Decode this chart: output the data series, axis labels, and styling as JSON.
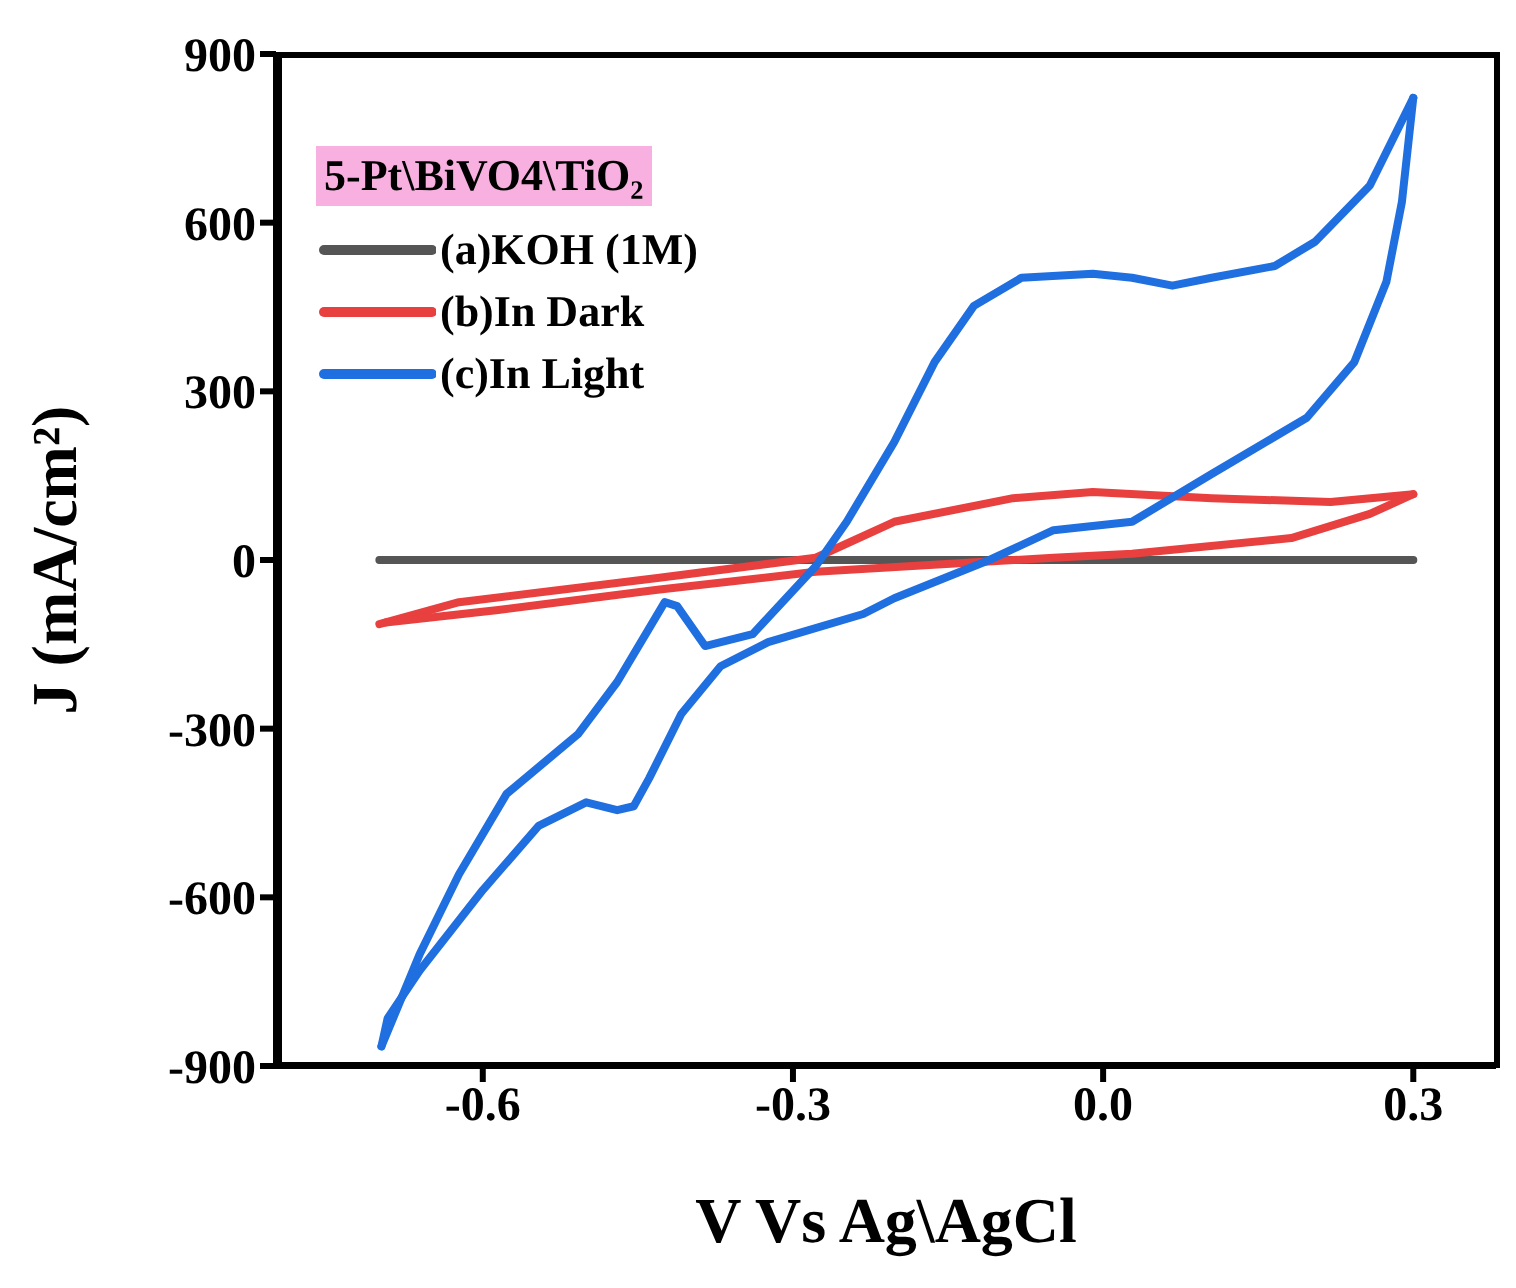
{
  "chart_data": {
    "type": "line",
    "xlabel": "V Vs Ag\\AgCl",
    "ylabel": "J (mA/cm²)",
    "legend_title": "5-Pt\\BiVO4\\TiO₂",
    "legend": "top left",
    "grid": false,
    "xlim": [
      -0.8,
      0.38
    ],
    "ylim": [
      -900,
      900
    ],
    "xticks": [
      -0.6,
      -0.3,
      {
        "value": 0,
        "label": "0.0"
      },
      0.3
    ],
    "yticks": [
      -900,
      -600,
      -300,
      0,
      300,
      600,
      900
    ],
    "series": [
      {
        "name": "(a)KOH (1M)",
        "color": "#555555",
        "x": [
          -0.7,
          0.3
        ],
        "values": [
          0,
          0
        ]
      },
      {
        "name": "(b)In Dark",
        "color": "#e8403f",
        "x": [
          -0.7,
          -0.623,
          -0.431,
          -0.278,
          -0.202,
          -0.087,
          -0.01,
          0.105,
          0.22,
          0.3
        ],
        "values": [
          -114,
          -75,
          -32,
          4,
          68,
          110,
          121,
          110,
          103,
          117
        ]
      },
      {
        "color": "#e8403f",
        "x": [
          0.3,
          0.258,
          0.182,
          0.028,
          -0.048,
          -0.278,
          -0.431,
          -0.585,
          -0.694
        ],
        "values": [
          117,
          82,
          39,
          11,
          4,
          -21,
          -53,
          -89,
          -111
        ]
      },
      {
        "name": "(c)In Light",
        "color": "#1f6fe0",
        "x": [
          -0.698,
          -0.661,
          -0.623,
          -0.577,
          -0.508,
          -0.47,
          -0.424,
          -0.412,
          -0.385,
          -0.339,
          -0.278,
          -0.248,
          -0.202,
          -0.163,
          -0.125,
          -0.079,
          -0.01,
          0.028,
          0.067,
          0.105,
          0.166,
          0.205,
          0.258,
          0.3
        ],
        "values": [
          -865,
          -701,
          -559,
          -416,
          -310,
          -217,
          -75,
          -82,
          -153,
          -132,
          -11,
          68,
          210,
          352,
          452,
          502,
          509,
          502,
          488,
          502,
          523,
          566,
          666,
          822
        ]
      },
      {
        "color": "#1f6fe0",
        "x": [
          0.3,
          0.289,
          0.274,
          0.243,
          0.197,
          0.105,
          0.028,
          -0.048,
          -0.11,
          -0.202,
          -0.232,
          -0.324,
          -0.37,
          -0.408,
          -0.439,
          -0.454,
          -0.47,
          -0.5,
          -0.546,
          -0.6,
          -0.661,
          -0.692,
          -0.698
        ],
        "values": [
          822,
          637,
          495,
          352,
          253,
          153,
          68,
          53,
          0,
          -68,
          -96,
          -146,
          -189,
          -274,
          -388,
          -438,
          -445,
          -431,
          -473,
          -587,
          -730,
          -815,
          -865
        ]
      }
    ]
  }
}
